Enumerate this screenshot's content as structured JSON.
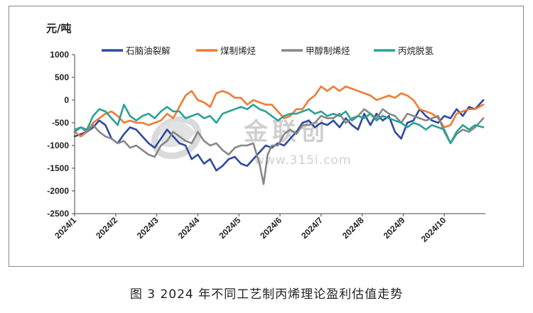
{
  "figure_caption": "图 3  2024 年不同工艺制丙烯理论盈利估值走势",
  "watermark": {
    "name": "金联创",
    "url": "www.315i.com",
    "mark": "®"
  },
  "chart_data": {
    "type": "line",
    "ylabel": "元/吨",
    "ylim": [
      -2500,
      1000
    ],
    "yticks": [
      1000,
      500,
      0,
      -500,
      -1000,
      -1500,
      -2000,
      -2500
    ],
    "ytick_labels": [
      "1000",
      "500",
      "0",
      "-500",
      "-1000",
      "-1500",
      "-2000",
      "-2500"
    ],
    "x_range": [
      1.0,
      11.0
    ],
    "xticks": [
      1,
      2,
      3,
      4,
      5,
      6,
      7,
      8,
      9,
      10
    ],
    "xtick_labels": [
      "2024/1",
      "2024/2",
      "2024/3",
      "2024/4",
      "2024/5",
      "2024/6",
      "2024/7",
      "2024/8",
      "2024/9",
      "2024/10"
    ],
    "legend_position": "top",
    "grid": false,
    "series": [
      {
        "name": "石脑油裂解",
        "color": "#2f4a9e",
        "x": [
          1.0,
          1.15,
          1.3,
          1.45,
          1.6,
          1.75,
          1.9,
          2.05,
          2.2,
          2.35,
          2.5,
          2.65,
          2.8,
          2.95,
          3.1,
          3.25,
          3.4,
          3.55,
          3.7,
          3.85,
          4.0,
          4.15,
          4.3,
          4.45,
          4.6,
          4.75,
          4.9,
          5.05,
          5.2,
          5.35,
          5.5,
          5.65,
          5.8,
          5.95,
          6.1,
          6.25,
          6.4,
          6.55,
          6.7,
          6.85,
          7.0,
          7.15,
          7.3,
          7.45,
          7.6,
          7.75,
          7.9,
          8.05,
          8.2,
          8.35,
          8.5,
          8.65,
          8.8,
          8.95,
          9.1,
          9.25,
          9.4,
          9.55,
          9.7,
          9.85,
          10.0,
          10.15,
          10.3,
          10.45,
          10.6,
          10.75,
          10.95
        ],
        "y": [
          -800,
          -750,
          -700,
          -600,
          -450,
          -550,
          -850,
          -950,
          -750,
          -600,
          -650,
          -800,
          -950,
          -1050,
          -850,
          -650,
          -800,
          -950,
          -1000,
          -1300,
          -1200,
          -1400,
          -1300,
          -1550,
          -1450,
          -1300,
          -1250,
          -1400,
          -1450,
          -1300,
          -1150,
          -1000,
          -1050,
          -950,
          -1000,
          -850,
          -700,
          -500,
          -450,
          -600,
          -500,
          -550,
          -450,
          -600,
          -400,
          -550,
          -650,
          -300,
          -550,
          -300,
          -450,
          -350,
          -700,
          -850,
          -500,
          -450,
          -200,
          -350,
          -450,
          -500,
          -350,
          -400,
          -200,
          -350,
          -150,
          -200,
          0
        ]
      },
      {
        "name": "煤制烯烃",
        "color": "#ef7b35",
        "x": [
          1.0,
          1.15,
          1.3,
          1.45,
          1.6,
          1.75,
          1.9,
          2.05,
          2.2,
          2.35,
          2.5,
          2.65,
          2.8,
          2.95,
          3.1,
          3.25,
          3.4,
          3.55,
          3.7,
          3.85,
          4.0,
          4.15,
          4.3,
          4.45,
          4.6,
          4.75,
          4.9,
          5.05,
          5.2,
          5.35,
          5.5,
          5.65,
          5.8,
          5.95,
          6.1,
          6.25,
          6.4,
          6.55,
          6.7,
          6.85,
          7.0,
          7.15,
          7.3,
          7.45,
          7.6,
          7.75,
          7.9,
          8.05,
          8.2,
          8.35,
          8.5,
          8.65,
          8.8,
          8.95,
          9.1,
          9.25,
          9.4,
          9.55,
          9.7,
          9.85,
          10.0,
          10.15,
          10.3,
          10.45,
          10.6,
          10.75,
          10.95
        ],
        "y": [
          -700,
          -800,
          -700,
          -500,
          -400,
          -300,
          -250,
          -350,
          -500,
          -450,
          -500,
          -500,
          -550,
          -500,
          -450,
          -300,
          -400,
          -150,
          100,
          200,
          0,
          -50,
          -150,
          150,
          200,
          150,
          50,
          50,
          -100,
          0,
          -50,
          -100,
          -100,
          -250,
          -400,
          -350,
          -200,
          -200,
          0,
          100,
          300,
          200,
          300,
          200,
          300,
          250,
          200,
          150,
          100,
          0,
          50,
          100,
          50,
          150,
          100,
          0,
          -200,
          -250,
          -300,
          -400,
          -600,
          -550,
          -300,
          -250,
          -200,
          -200,
          -100
        ]
      },
      {
        "name": "甲醇制烯烃",
        "color": "#878787",
        "x": [
          1.0,
          1.15,
          1.3,
          1.45,
          1.6,
          1.75,
          1.9,
          2.05,
          2.2,
          2.35,
          2.5,
          2.65,
          2.8,
          2.95,
          3.1,
          3.25,
          3.4,
          3.55,
          3.7,
          3.85,
          4.0,
          4.15,
          4.3,
          4.45,
          4.6,
          4.75,
          4.9,
          5.05,
          5.2,
          5.35,
          5.5,
          5.6,
          5.7,
          5.8,
          5.95,
          6.1,
          6.25,
          6.4,
          6.55,
          6.7,
          6.85,
          7.0,
          7.15,
          7.3,
          7.45,
          7.6,
          7.75,
          7.9,
          8.05,
          8.2,
          8.35,
          8.5,
          8.65,
          8.8,
          8.95,
          9.1,
          9.25,
          9.4,
          9.55,
          9.7,
          9.85,
          10.0,
          10.15,
          10.3,
          10.45,
          10.6,
          10.75,
          10.95
        ],
        "y": [
          -650,
          -600,
          -700,
          -550,
          -700,
          -800,
          -850,
          -950,
          -900,
          -1050,
          -1000,
          -1100,
          -1200,
          -1250,
          -1000,
          -900,
          -700,
          -800,
          -900,
          -950,
          -700,
          -900,
          -1000,
          -950,
          -1100,
          -1200,
          -1050,
          -1000,
          -1000,
          -950,
          -1400,
          -1850,
          -1200,
          -1000,
          -1000,
          -750,
          -650,
          -750,
          -550,
          -550,
          -500,
          -350,
          -400,
          -400,
          -300,
          -500,
          -400,
          -350,
          -200,
          -300,
          -400,
          -200,
          -300,
          -350,
          -500,
          -300,
          -350,
          -400,
          -450,
          -400,
          -350,
          -700,
          -950,
          -750,
          -650,
          -700,
          -600,
          -400
        ]
      },
      {
        "name": "丙烷脱氢",
        "color": "#2aa198",
        "x": [
          1.0,
          1.15,
          1.3,
          1.45,
          1.6,
          1.75,
          1.9,
          2.05,
          2.2,
          2.35,
          2.5,
          2.65,
          2.8,
          2.95,
          3.1,
          3.25,
          3.4,
          3.55,
          3.7,
          3.85,
          4.0,
          4.15,
          4.3,
          4.45,
          4.6,
          4.75,
          4.9,
          5.05,
          5.2,
          5.35,
          5.5,
          5.65,
          5.8,
          5.95,
          6.1,
          6.25,
          6.4,
          6.55,
          6.7,
          6.85,
          7.0,
          7.15,
          7.3,
          7.45,
          7.6,
          7.75,
          7.9,
          8.05,
          8.2,
          8.35,
          8.5,
          8.65,
          8.8,
          8.95,
          9.1,
          9.25,
          9.4,
          9.55,
          9.7,
          9.85,
          10.0,
          10.15,
          10.3,
          10.45,
          10.6,
          10.75,
          10.95
        ],
        "y": [
          -700,
          -600,
          -650,
          -350,
          -200,
          -250,
          -400,
          -550,
          -100,
          -350,
          -450,
          -350,
          -300,
          -400,
          -250,
          -150,
          -250,
          -250,
          -400,
          -350,
          -300,
          -400,
          -350,
          -500,
          -300,
          -250,
          -200,
          -150,
          -200,
          -100,
          -200,
          -250,
          -350,
          -450,
          -350,
          -300,
          -300,
          -250,
          -200,
          -300,
          -250,
          -350,
          -300,
          -350,
          -250,
          -450,
          -350,
          -400,
          -300,
          -450,
          -350,
          -400,
          -450,
          -500,
          -600,
          -500,
          -550,
          -650,
          -550,
          -600,
          -650,
          -950,
          -700,
          -550,
          -650,
          -550,
          -600
        ]
      }
    ]
  }
}
